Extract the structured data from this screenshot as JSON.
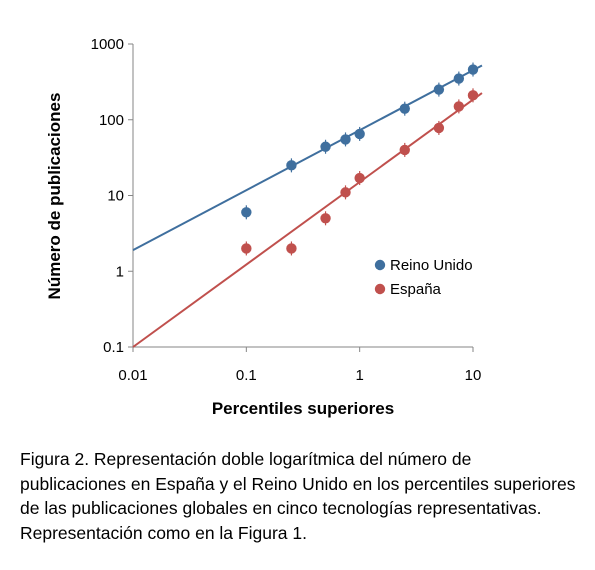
{
  "chart_data": {
    "type": "scatter",
    "title": "",
    "xlabel": "Percentiles superiores",
    "ylabel": "Número de publicaciones",
    "xscale": "log",
    "yscale": "log",
    "xlim": [
      0.01,
      10
    ],
    "ylim": [
      0.1,
      1000
    ],
    "xticks": [
      "0.01",
      "0.1",
      "1",
      "10"
    ],
    "yticks": [
      "0.1",
      "1",
      "10",
      "100",
      "1000"
    ],
    "grid": false,
    "legend_position": "right",
    "series": [
      {
        "name": "Reino Unido",
        "color": "#3f6f9e",
        "x": [
          0.1,
          0.25,
          0.5,
          0.75,
          1,
          2.5,
          5,
          7.5,
          10
        ],
        "y": [
          6,
          25,
          44,
          55,
          65,
          140,
          250,
          350,
          460
        ],
        "fit_line": {
          "x": [
            0.01,
            12
          ],
          "y": [
            1.9,
            520
          ]
        }
      },
      {
        "name": "España",
        "color": "#c0504d",
        "x": [
          0.1,
          0.25,
          0.5,
          0.75,
          1,
          2.5,
          5,
          7.5,
          10
        ],
        "y": [
          2,
          2,
          5,
          11,
          17,
          40,
          78,
          150,
          210
        ],
        "fit_line": {
          "x": [
            0.01,
            12
          ],
          "y": [
            0.1,
            225
          ]
        }
      }
    ]
  },
  "caption": "Figura 2. Representación doble logarítmica del número de publicaciones en España y el Reino Unido en los percentiles superiores de las publicaciones globales en cinco tecnologías representativas. Representación como en la Figura 1."
}
